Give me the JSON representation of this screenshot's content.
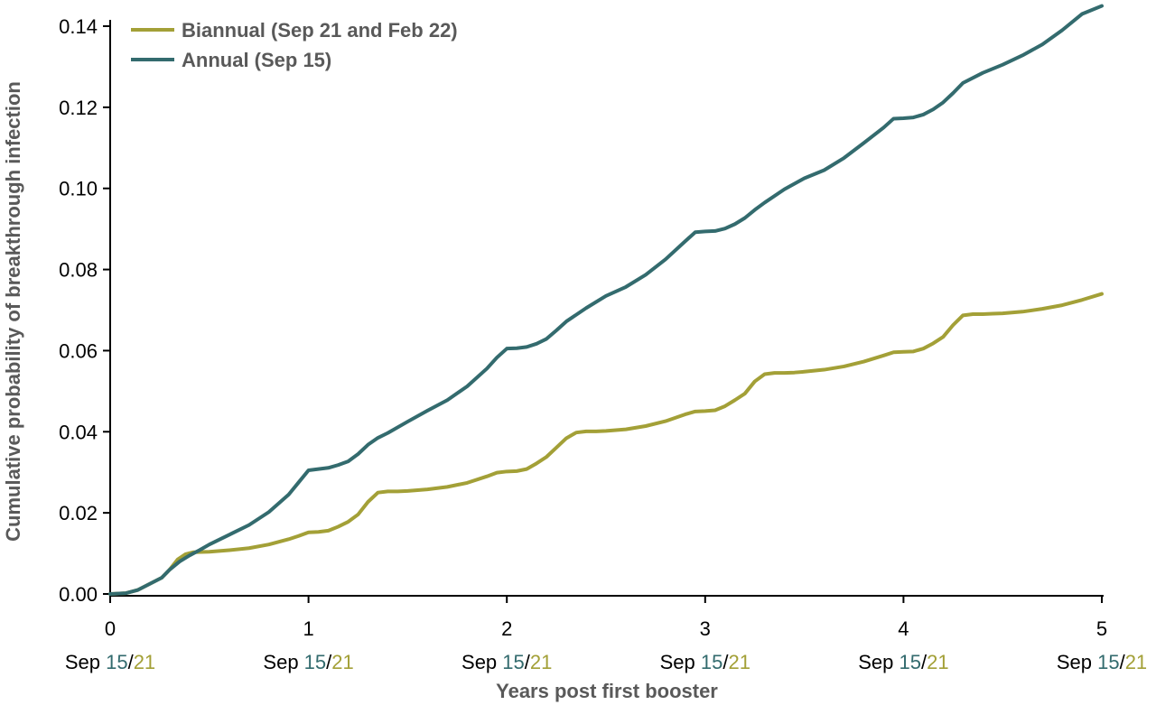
{
  "chart_data": {
    "type": "line",
    "xlabel": "Years post first booster",
    "ylabel": "Cumulative probability of breakthrough infection",
    "xlim": [
      0,
      5
    ],
    "ylim": [
      0,
      0.14
    ],
    "x_ticks": [
      0,
      1,
      2,
      3,
      4,
      5
    ],
    "y_ticks": [
      "0.00",
      "0.02",
      "0.04",
      "0.06",
      "0.08",
      "0.10",
      "0.12",
      "0.14"
    ],
    "x_subticks": {
      "prefix": "Sep ",
      "part1": "15",
      "separator": "/",
      "part2": "21",
      "part1_color": "#336B6E",
      "part2_color": "#A3A037"
    },
    "grid": false,
    "legend_position": "top-left",
    "series": [
      {
        "name": "Biannual (Sep 21 and Feb 22)",
        "color": "#A3A037",
        "x": [
          0,
          0.08,
          0.14,
          0.2,
          0.26,
          0.3,
          0.34,
          0.38,
          0.42,
          0.5,
          0.6,
          0.7,
          0.8,
          0.9,
          0.95,
          1.0,
          1.05,
          1.1,
          1.15,
          1.2,
          1.25,
          1.3,
          1.35,
          1.4,
          1.45,
          1.5,
          1.6,
          1.7,
          1.8,
          1.9,
          1.95,
          2.0,
          2.05,
          2.1,
          2.15,
          2.2,
          2.25,
          2.3,
          2.35,
          2.4,
          2.45,
          2.5,
          2.6,
          2.7,
          2.8,
          2.9,
          2.95,
          3.0,
          3.05,
          3.1,
          3.15,
          3.2,
          3.25,
          3.3,
          3.35,
          3.4,
          3.45,
          3.5,
          3.6,
          3.7,
          3.8,
          3.9,
          3.95,
          4.0,
          4.05,
          4.1,
          4.15,
          4.2,
          4.25,
          4.3,
          4.35,
          4.4,
          4.45,
          4.5,
          4.6,
          4.7,
          4.8,
          4.9,
          5.0
        ],
        "values": [
          0.0,
          0.0002,
          0.001,
          0.0025,
          0.004,
          0.006,
          0.0085,
          0.0098,
          0.0103,
          0.0104,
          0.0108,
          0.0113,
          0.0122,
          0.0135,
          0.0143,
          0.0152,
          0.0153,
          0.0156,
          0.0166,
          0.0178,
          0.0196,
          0.0227,
          0.025,
          0.0253,
          0.0253,
          0.0254,
          0.0258,
          0.0264,
          0.0274,
          0.029,
          0.0299,
          0.0302,
          0.0303,
          0.0308,
          0.0322,
          0.0338,
          0.0361,
          0.0384,
          0.0398,
          0.0401,
          0.0401,
          0.0402,
          0.0406,
          0.0414,
          0.0426,
          0.0443,
          0.045,
          0.0451,
          0.0453,
          0.0463,
          0.0478,
          0.0494,
          0.0524,
          0.0542,
          0.0545,
          0.0545,
          0.0546,
          0.0548,
          0.0553,
          0.0561,
          0.0573,
          0.0588,
          0.0596,
          0.0597,
          0.0598,
          0.0605,
          0.0618,
          0.0634,
          0.0663,
          0.0687,
          0.069,
          0.069,
          0.0691,
          0.0692,
          0.0696,
          0.0703,
          0.0712,
          0.0725,
          0.074
        ]
      },
      {
        "name": "Annual (Sep 15)",
        "color": "#336B6E",
        "x": [
          0,
          0.08,
          0.14,
          0.2,
          0.26,
          0.3,
          0.35,
          0.4,
          0.45,
          0.5,
          0.6,
          0.7,
          0.8,
          0.9,
          0.95,
          1.0,
          1.05,
          1.1,
          1.15,
          1.2,
          1.25,
          1.3,
          1.35,
          1.4,
          1.5,
          1.6,
          1.7,
          1.8,
          1.9,
          1.95,
          2.0,
          2.05,
          2.1,
          2.15,
          2.2,
          2.25,
          2.3,
          2.4,
          2.5,
          2.6,
          2.7,
          2.8,
          2.9,
          2.95,
          3.0,
          3.05,
          3.1,
          3.15,
          3.2,
          3.25,
          3.3,
          3.4,
          3.5,
          3.6,
          3.7,
          3.8,
          3.9,
          3.95,
          4.0,
          4.05,
          4.1,
          4.15,
          4.2,
          4.25,
          4.3,
          4.4,
          4.5,
          4.6,
          4.7,
          4.8,
          4.9,
          5.0
        ],
        "values": [
          0.0,
          0.0002,
          0.001,
          0.0025,
          0.004,
          0.006,
          0.008,
          0.0095,
          0.0108,
          0.0122,
          0.0146,
          0.017,
          0.0202,
          0.0245,
          0.0275,
          0.0305,
          0.0308,
          0.0311,
          0.0318,
          0.0327,
          0.0345,
          0.0368,
          0.0385,
          0.0397,
          0.0425,
          0.0452,
          0.0478,
          0.0512,
          0.0556,
          0.0583,
          0.0605,
          0.0606,
          0.0609,
          0.0617,
          0.0629,
          0.065,
          0.0672,
          0.0705,
          0.0735,
          0.0757,
          0.0787,
          0.0825,
          0.087,
          0.0892,
          0.0894,
          0.0895,
          0.0901,
          0.0912,
          0.0927,
          0.0947,
          0.0965,
          0.0998,
          0.1025,
          0.1045,
          0.1075,
          0.1112,
          0.115,
          0.1172,
          0.1173,
          0.1175,
          0.1182,
          0.1195,
          0.1212,
          0.1235,
          0.126,
          0.1285,
          0.1305,
          0.1328,
          0.1355,
          0.139,
          0.143,
          0.145
        ]
      }
    ]
  }
}
